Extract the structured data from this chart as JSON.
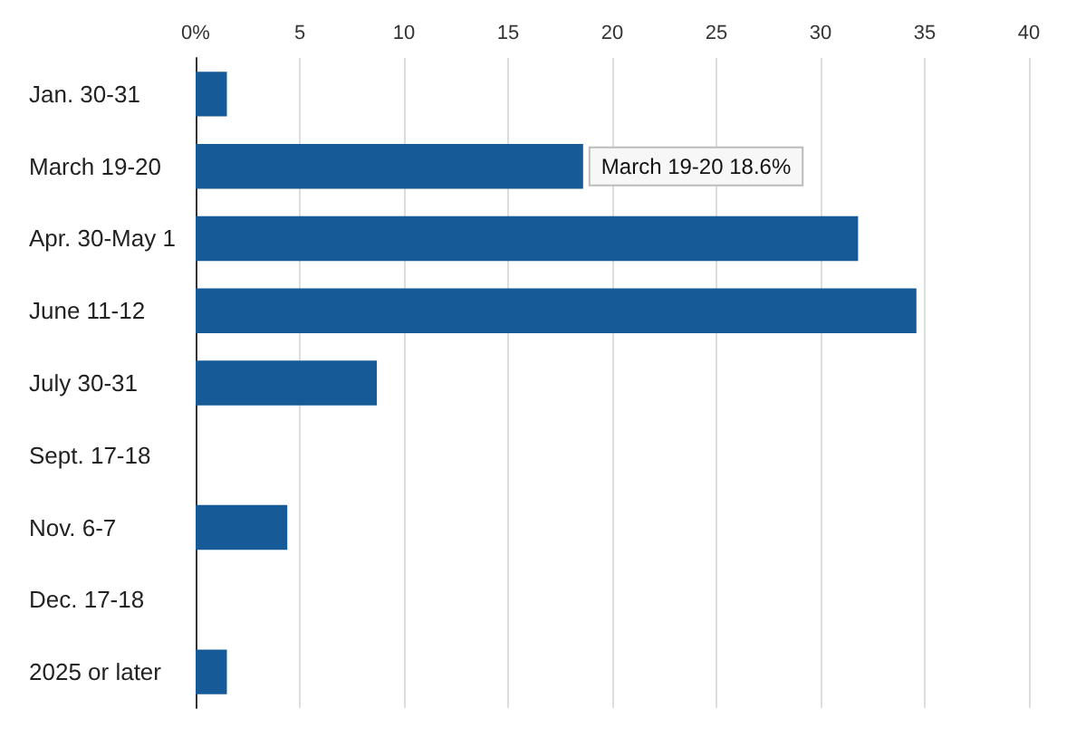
{
  "chart_data": {
    "type": "bar",
    "orientation": "horizontal",
    "categories": [
      "Jan. 30-31",
      "March 19-20",
      "Apr. 30-May 1",
      "June 11-12",
      "July 30-31",
      "Sept. 17-18",
      "Nov. 6-7",
      "Dec. 17-18",
      "2025 or later"
    ],
    "values": [
      1.5,
      18.6,
      31.8,
      34.6,
      8.7,
      0,
      4.4,
      0,
      1.5
    ],
    "color": "#165b98",
    "xlim": [
      0,
      40
    ],
    "xticks": [
      {
        "value": 0,
        "label": "0%"
      },
      5,
      10,
      15,
      20,
      25,
      30,
      35,
      40
    ],
    "grid": "x",
    "annotations": [
      {
        "text": "March 19-20 18.6%",
        "x": 18.6,
        "y": "March 19-20"
      }
    ]
  }
}
